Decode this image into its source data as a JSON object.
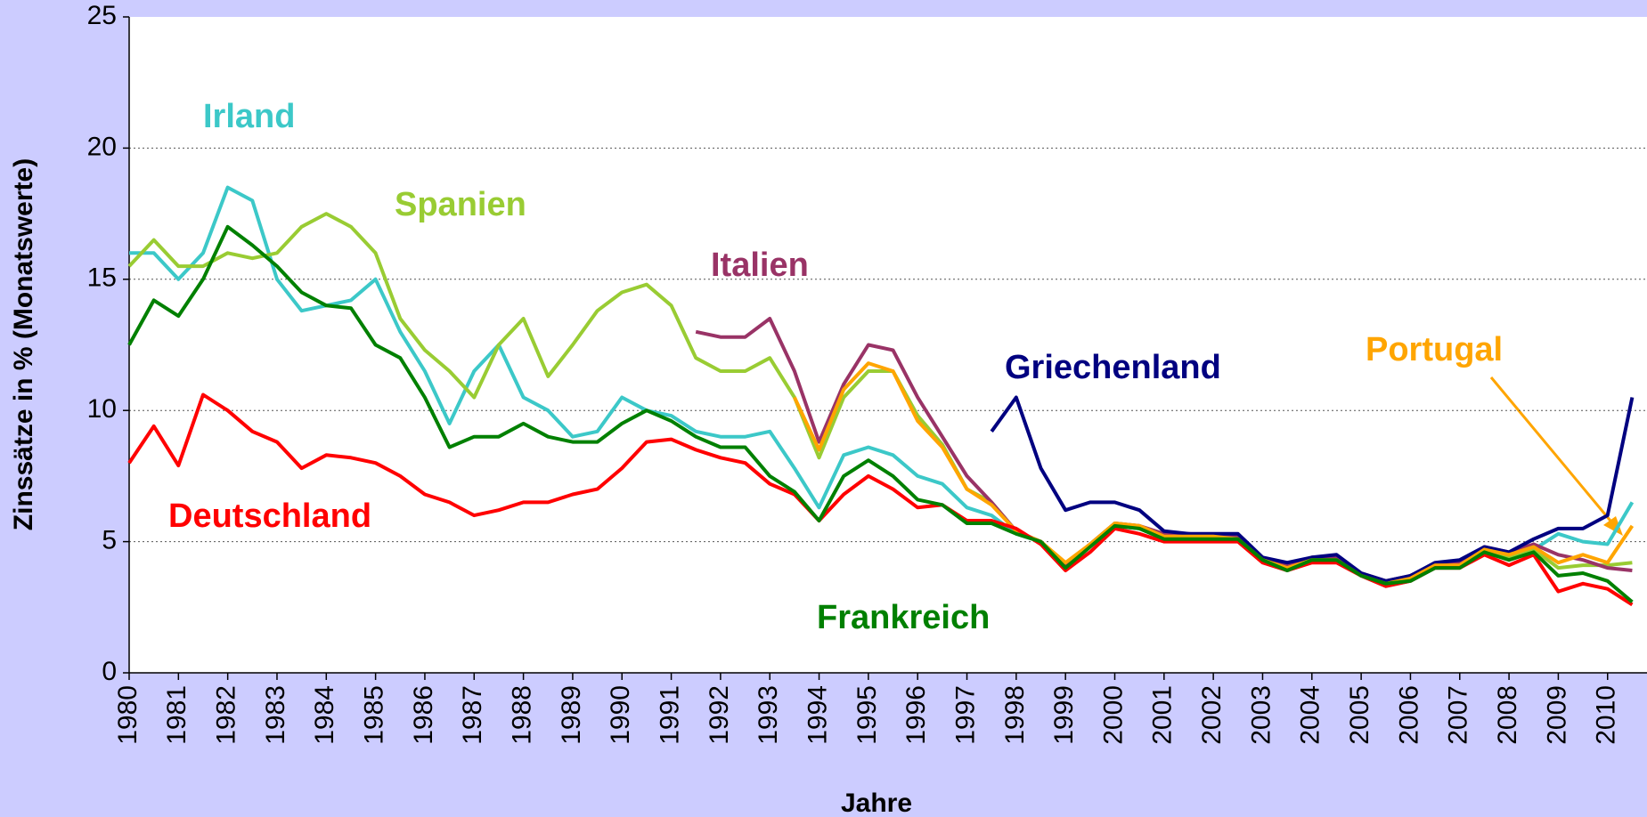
{
  "chart_data": {
    "type": "line",
    "ylabel": "Zinssätze in % (Monatswerte)",
    "xlabel": "Jahre",
    "x": [
      1980,
      1980.5,
      1981,
      1981.5,
      1982,
      1982.5,
      1983,
      1983.5,
      1984,
      1984.5,
      1985,
      1985.5,
      1986,
      1986.5,
      1987,
      1987.5,
      1988,
      1988.5,
      1989,
      1989.5,
      1990,
      1990.5,
      1991,
      1991.5,
      1992,
      1992.5,
      1993,
      1993.5,
      1994,
      1994.5,
      1995,
      1995.5,
      1996,
      1996.5,
      1997,
      1997.5,
      1998,
      1998.5,
      1999,
      1999.5,
      2000,
      2000.5,
      2001,
      2001.5,
      2002,
      2002.5,
      2003,
      2003.5,
      2004,
      2004.5,
      2005,
      2005.5,
      2006,
      2006.5,
      2007,
      2007.5,
      2008,
      2008.5,
      2009,
      2009.5,
      2010,
      2010.5
    ],
    "series": [
      {
        "name": "Irland",
        "color": "#3cc8c8",
        "values": [
          16.0,
          16.0,
          15.0,
          16.0,
          18.5,
          18.0,
          15.0,
          13.8,
          14.0,
          14.2,
          15.0,
          13.0,
          11.5,
          9.5,
          11.5,
          12.5,
          10.5,
          10.0,
          9.0,
          9.2,
          10.5,
          10.0,
          9.8,
          9.2,
          9.0,
          9.0,
          9.2,
          7.8,
          6.3,
          8.3,
          8.6,
          8.3,
          7.5,
          7.2,
          6.3,
          6.0,
          5.3,
          5.0,
          4.1,
          4.9,
          5.6,
          5.5,
          5.1,
          5.1,
          5.1,
          5.1,
          4.3,
          3.9,
          4.3,
          4.3,
          3.7,
          3.3,
          3.5,
          4.0,
          4.0,
          4.6,
          4.4,
          4.7,
          5.3,
          5.0,
          4.9,
          6.5
        ]
      },
      {
        "name": "Spanien",
        "color": "#99cc33",
        "values": [
          15.5,
          16.5,
          15.5,
          15.5,
          16.0,
          15.8,
          16.0,
          17.0,
          17.5,
          17.0,
          16.0,
          13.5,
          12.3,
          11.5,
          10.5,
          12.5,
          13.5,
          11.3,
          12.5,
          13.8,
          14.5,
          14.8,
          14.0,
          12.0,
          11.5,
          11.5,
          12.0,
          10.5,
          8.2,
          10.5,
          11.5,
          11.5,
          9.8,
          8.7,
          7.0,
          6.5,
          5.4,
          5.0,
          4.1,
          4.9,
          5.7,
          5.6,
          5.2,
          5.2,
          5.2,
          5.1,
          4.3,
          3.9,
          4.3,
          4.3,
          3.7,
          3.4,
          3.6,
          4.0,
          4.0,
          4.7,
          4.4,
          4.7,
          4.0,
          4.1,
          4.1,
          4.2
        ]
      },
      {
        "name": "Italien",
        "color": "#993366",
        "values": [
          null,
          null,
          null,
          null,
          null,
          null,
          null,
          null,
          null,
          null,
          null,
          null,
          null,
          null,
          null,
          null,
          null,
          null,
          null,
          null,
          null,
          null,
          null,
          13.0,
          12.8,
          12.8,
          13.5,
          11.5,
          8.8,
          11.0,
          12.5,
          12.3,
          10.5,
          9.0,
          7.5,
          6.5,
          5.4,
          5.0,
          4.1,
          4.9,
          5.7,
          5.6,
          5.3,
          5.3,
          5.2,
          5.2,
          4.3,
          4.1,
          4.4,
          4.4,
          3.8,
          3.5,
          3.7,
          4.1,
          4.2,
          4.8,
          4.6,
          4.9,
          4.5,
          4.3,
          4.0,
          3.9
        ]
      },
      {
        "name": "Griechenland",
        "color": "#000080",
        "values": [
          null,
          null,
          null,
          null,
          null,
          null,
          null,
          null,
          null,
          null,
          null,
          null,
          null,
          null,
          null,
          null,
          null,
          null,
          null,
          null,
          null,
          null,
          null,
          null,
          null,
          null,
          null,
          null,
          null,
          null,
          null,
          null,
          null,
          null,
          null,
          9.2,
          10.5,
          7.8,
          6.2,
          6.5,
          6.5,
          6.2,
          5.4,
          5.3,
          5.3,
          5.3,
          4.4,
          4.2,
          4.4,
          4.5,
          3.8,
          3.5,
          3.7,
          4.2,
          4.3,
          4.8,
          4.6,
          5.1,
          5.5,
          5.5,
          6.0,
          10.5
        ]
      },
      {
        "name": "Portugal",
        "color": "#ffa500",
        "values": [
          null,
          null,
          null,
          null,
          null,
          null,
          null,
          null,
          null,
          null,
          null,
          null,
          null,
          null,
          null,
          null,
          null,
          null,
          null,
          null,
          null,
          null,
          null,
          null,
          null,
          null,
          null,
          10.5,
          8.5,
          10.8,
          11.8,
          11.5,
          9.6,
          8.6,
          7.0,
          6.4,
          5.4,
          5.0,
          4.2,
          4.9,
          5.7,
          5.6,
          5.2,
          5.2,
          5.2,
          5.1,
          4.3,
          4.0,
          4.3,
          4.3,
          3.7,
          3.4,
          3.6,
          4.1,
          4.1,
          4.7,
          4.5,
          4.8,
          4.2,
          4.5,
          4.2,
          5.6
        ]
      },
      {
        "name": "Deutschland",
        "color": "#ff0000",
        "values": [
          8.0,
          9.4,
          7.9,
          10.6,
          10.0,
          9.2,
          8.8,
          7.8,
          8.3,
          8.2,
          8.0,
          7.5,
          6.8,
          6.5,
          6.0,
          6.2,
          6.5,
          6.5,
          6.8,
          7.0,
          7.8,
          8.8,
          8.9,
          8.5,
          8.2,
          8.0,
          7.2,
          6.8,
          5.8,
          6.8,
          7.5,
          7.0,
          6.3,
          6.4,
          5.8,
          5.8,
          5.5,
          4.9,
          3.9,
          4.6,
          5.5,
          5.3,
          5.0,
          5.0,
          5.0,
          5.0,
          4.2,
          3.9,
          4.2,
          4.2,
          3.7,
          3.3,
          3.5,
          4.0,
          4.0,
          4.5,
          4.1,
          4.5,
          3.1,
          3.4,
          3.2,
          2.6
        ]
      },
      {
        "name": "Frankreich",
        "color": "#008000",
        "values": [
          12.5,
          14.2,
          13.6,
          15.0,
          17.0,
          16.3,
          15.5,
          14.5,
          14.0,
          13.9,
          12.5,
          12.0,
          10.5,
          8.6,
          9.0,
          9.0,
          9.5,
          9.0,
          8.8,
          8.8,
          9.5,
          10.0,
          9.6,
          9.0,
          8.6,
          8.6,
          7.5,
          6.9,
          5.8,
          7.5,
          8.1,
          7.5,
          6.6,
          6.4,
          5.7,
          5.7,
          5.3,
          5.0,
          4.0,
          4.8,
          5.6,
          5.5,
          5.1,
          5.1,
          5.1,
          5.1,
          4.3,
          3.9,
          4.3,
          4.3,
          3.7,
          3.4,
          3.5,
          4.0,
          4.0,
          4.6,
          4.3,
          4.6,
          3.7,
          3.8,
          3.5,
          2.7
        ]
      }
    ],
    "xlim": [
      1980,
      2010.8
    ],
    "xticks": [
      1980,
      1981,
      1982,
      1983,
      1984,
      1985,
      1986,
      1987,
      1988,
      1989,
      1990,
      1991,
      1992,
      1993,
      1994,
      1995,
      1996,
      1997,
      1998,
      1999,
      2000,
      2001,
      2002,
      2003,
      2004,
      2005,
      2006,
      2007,
      2008,
      2009,
      2010
    ],
    "ylim": [
      0,
      25
    ],
    "yticks": [
      0,
      5,
      10,
      15,
      20,
      25
    ],
    "grid": true
  }
}
